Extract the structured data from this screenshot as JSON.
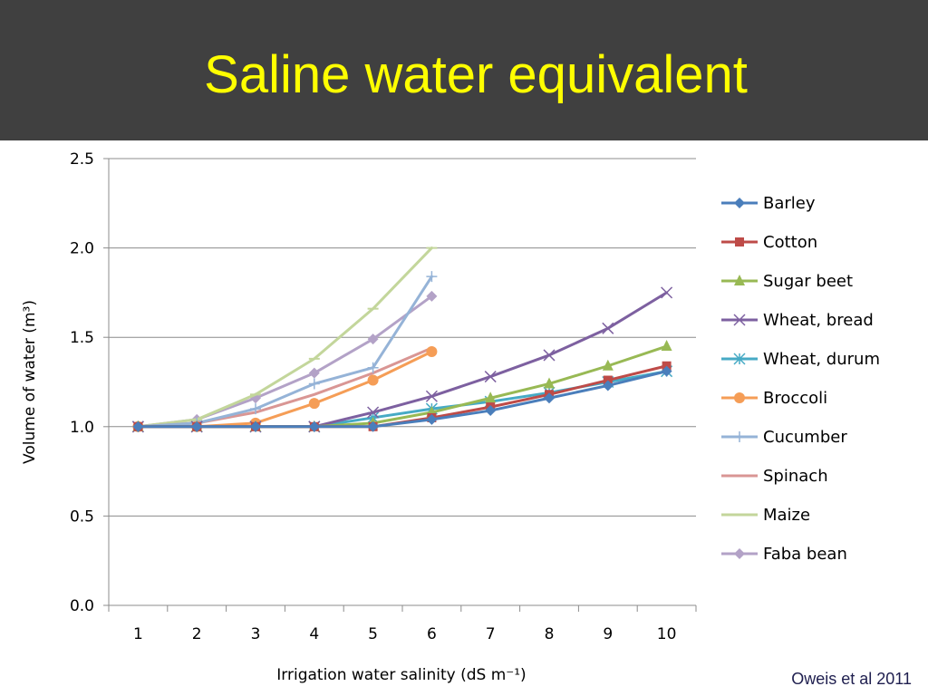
{
  "slide": {
    "title": "Saline water equivalent",
    "citation": "Oweis et al 2011"
  },
  "chart_data": {
    "type": "line",
    "title": "",
    "xlabel": "Irrigation water salinity (dS m⁻¹)",
    "ylabel": "Volume of water (m³)",
    "ylim": [
      0,
      2.5
    ],
    "yticks": [
      "0.0",
      "0.5",
      "1.0",
      "1.5",
      "2.0",
      "2.5"
    ],
    "categories": [
      "1",
      "2",
      "3",
      "4",
      "5",
      "6",
      "7",
      "8",
      "9",
      "10"
    ],
    "grid": "horizontal",
    "legend_position": "right",
    "series": [
      {
        "name": "Barley",
        "color": "#4a7ebb",
        "marker": "diamond",
        "values": [
          1.0,
          1.0,
          1.0,
          1.0,
          1.0,
          1.04,
          1.09,
          1.16,
          1.23,
          1.31
        ]
      },
      {
        "name": "Cotton",
        "color": "#be4b48",
        "marker": "square",
        "values": [
          1.0,
          1.0,
          1.0,
          1.0,
          1.0,
          1.05,
          1.11,
          1.18,
          1.26,
          1.34
        ]
      },
      {
        "name": "Sugar beet",
        "color": "#98b954",
        "marker": "triangle",
        "values": [
          1.0,
          1.0,
          1.0,
          1.0,
          1.02,
          1.08,
          1.16,
          1.24,
          1.34,
          1.45
        ]
      },
      {
        "name": "Wheat, bread",
        "color": "#7d60a0",
        "marker": "x",
        "values": [
          1.0,
          1.0,
          1.0,
          1.0,
          1.08,
          1.17,
          1.28,
          1.4,
          1.55,
          1.75
        ]
      },
      {
        "name": "Wheat, durum",
        "color": "#46aac5",
        "marker": "asterisk",
        "values": [
          1.0,
          1.0,
          1.0,
          1.0,
          1.05,
          1.1,
          1.14,
          1.19,
          1.25,
          1.31
        ]
      },
      {
        "name": "Broccoli",
        "color": "#f59d56",
        "marker": "circle",
        "values": [
          1.0,
          1.0,
          1.02,
          1.13,
          1.26,
          1.42,
          null,
          null,
          null,
          null
        ]
      },
      {
        "name": "Cucumber",
        "color": "#95b3d7",
        "marker": "plus",
        "values": [
          1.0,
          1.02,
          1.1,
          1.24,
          1.33,
          1.84,
          null,
          null,
          null,
          null
        ]
      },
      {
        "name": "Spinach",
        "color": "#d99694",
        "marker": "none",
        "values": [
          1.0,
          1.02,
          1.08,
          1.18,
          1.3,
          1.44,
          null,
          null,
          null,
          null
        ]
      },
      {
        "name": "Maize",
        "color": "#c3d69b",
        "marker": "dash",
        "values": [
          1.0,
          1.04,
          1.18,
          1.38,
          1.66,
          2.0,
          null,
          null,
          null,
          null
        ]
      },
      {
        "name": "Faba bean",
        "color": "#b3a2c7",
        "marker": "diamond",
        "values": [
          1.0,
          1.04,
          1.16,
          1.3,
          1.49,
          1.73,
          null,
          null,
          null,
          null
        ]
      }
    ]
  }
}
